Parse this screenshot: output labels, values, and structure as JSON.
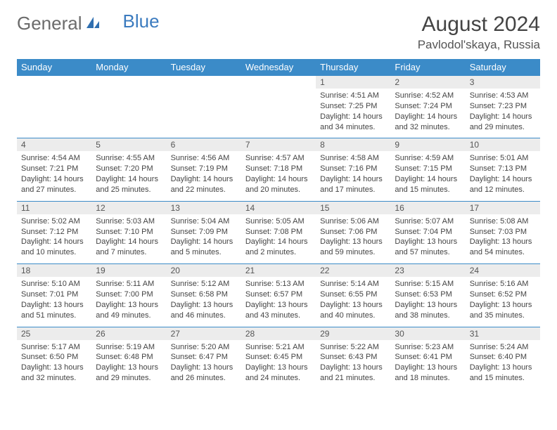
{
  "brand": {
    "part1": "General",
    "part2": "Blue"
  },
  "title": "August 2024",
  "location": "Pavlodol'skaya, Russia",
  "colors": {
    "header_bg": "#3b8bc8",
    "header_text": "#ffffff",
    "daynum_bg": "#ececec",
    "rule": "#3b8bc8",
    "text": "#444444",
    "brand_gray": "#6b6b6b",
    "brand_blue": "#3b7bbf",
    "page_bg": "#ffffff"
  },
  "day_headers": [
    "Sunday",
    "Monday",
    "Tuesday",
    "Wednesday",
    "Thursday",
    "Friday",
    "Saturday"
  ],
  "weeks": [
    {
      "nums": [
        "",
        "",
        "",
        "",
        "1",
        "2",
        "3"
      ],
      "cells": [
        {
          "empty": true
        },
        {
          "empty": true
        },
        {
          "empty": true
        },
        {
          "empty": true
        },
        {
          "sunrise": "Sunrise: 4:51 AM",
          "sunset": "Sunset: 7:25 PM",
          "day1": "Daylight: 14 hours",
          "day2": "and 34 minutes."
        },
        {
          "sunrise": "Sunrise: 4:52 AM",
          "sunset": "Sunset: 7:24 PM",
          "day1": "Daylight: 14 hours",
          "day2": "and 32 minutes."
        },
        {
          "sunrise": "Sunrise: 4:53 AM",
          "sunset": "Sunset: 7:23 PM",
          "day1": "Daylight: 14 hours",
          "day2": "and 29 minutes."
        }
      ]
    },
    {
      "nums": [
        "4",
        "5",
        "6",
        "7",
        "8",
        "9",
        "10"
      ],
      "cells": [
        {
          "sunrise": "Sunrise: 4:54 AM",
          "sunset": "Sunset: 7:21 PM",
          "day1": "Daylight: 14 hours",
          "day2": "and 27 minutes."
        },
        {
          "sunrise": "Sunrise: 4:55 AM",
          "sunset": "Sunset: 7:20 PM",
          "day1": "Daylight: 14 hours",
          "day2": "and 25 minutes."
        },
        {
          "sunrise": "Sunrise: 4:56 AM",
          "sunset": "Sunset: 7:19 PM",
          "day1": "Daylight: 14 hours",
          "day2": "and 22 minutes."
        },
        {
          "sunrise": "Sunrise: 4:57 AM",
          "sunset": "Sunset: 7:18 PM",
          "day1": "Daylight: 14 hours",
          "day2": "and 20 minutes."
        },
        {
          "sunrise": "Sunrise: 4:58 AM",
          "sunset": "Sunset: 7:16 PM",
          "day1": "Daylight: 14 hours",
          "day2": "and 17 minutes."
        },
        {
          "sunrise": "Sunrise: 4:59 AM",
          "sunset": "Sunset: 7:15 PM",
          "day1": "Daylight: 14 hours",
          "day2": "and 15 minutes."
        },
        {
          "sunrise": "Sunrise: 5:01 AM",
          "sunset": "Sunset: 7:13 PM",
          "day1": "Daylight: 14 hours",
          "day2": "and 12 minutes."
        }
      ]
    },
    {
      "nums": [
        "11",
        "12",
        "13",
        "14",
        "15",
        "16",
        "17"
      ],
      "cells": [
        {
          "sunrise": "Sunrise: 5:02 AM",
          "sunset": "Sunset: 7:12 PM",
          "day1": "Daylight: 14 hours",
          "day2": "and 10 minutes."
        },
        {
          "sunrise": "Sunrise: 5:03 AM",
          "sunset": "Sunset: 7:10 PM",
          "day1": "Daylight: 14 hours",
          "day2": "and 7 minutes."
        },
        {
          "sunrise": "Sunrise: 5:04 AM",
          "sunset": "Sunset: 7:09 PM",
          "day1": "Daylight: 14 hours",
          "day2": "and 5 minutes."
        },
        {
          "sunrise": "Sunrise: 5:05 AM",
          "sunset": "Sunset: 7:08 PM",
          "day1": "Daylight: 14 hours",
          "day2": "and 2 minutes."
        },
        {
          "sunrise": "Sunrise: 5:06 AM",
          "sunset": "Sunset: 7:06 PM",
          "day1": "Daylight: 13 hours",
          "day2": "and 59 minutes."
        },
        {
          "sunrise": "Sunrise: 5:07 AM",
          "sunset": "Sunset: 7:04 PM",
          "day1": "Daylight: 13 hours",
          "day2": "and 57 minutes."
        },
        {
          "sunrise": "Sunrise: 5:08 AM",
          "sunset": "Sunset: 7:03 PM",
          "day1": "Daylight: 13 hours",
          "day2": "and 54 minutes."
        }
      ]
    },
    {
      "nums": [
        "18",
        "19",
        "20",
        "21",
        "22",
        "23",
        "24"
      ],
      "cells": [
        {
          "sunrise": "Sunrise: 5:10 AM",
          "sunset": "Sunset: 7:01 PM",
          "day1": "Daylight: 13 hours",
          "day2": "and 51 minutes."
        },
        {
          "sunrise": "Sunrise: 5:11 AM",
          "sunset": "Sunset: 7:00 PM",
          "day1": "Daylight: 13 hours",
          "day2": "and 49 minutes."
        },
        {
          "sunrise": "Sunrise: 5:12 AM",
          "sunset": "Sunset: 6:58 PM",
          "day1": "Daylight: 13 hours",
          "day2": "and 46 minutes."
        },
        {
          "sunrise": "Sunrise: 5:13 AM",
          "sunset": "Sunset: 6:57 PM",
          "day1": "Daylight: 13 hours",
          "day2": "and 43 minutes."
        },
        {
          "sunrise": "Sunrise: 5:14 AM",
          "sunset": "Sunset: 6:55 PM",
          "day1": "Daylight: 13 hours",
          "day2": "and 40 minutes."
        },
        {
          "sunrise": "Sunrise: 5:15 AM",
          "sunset": "Sunset: 6:53 PM",
          "day1": "Daylight: 13 hours",
          "day2": "and 38 minutes."
        },
        {
          "sunrise": "Sunrise: 5:16 AM",
          "sunset": "Sunset: 6:52 PM",
          "day1": "Daylight: 13 hours",
          "day2": "and 35 minutes."
        }
      ]
    },
    {
      "nums": [
        "25",
        "26",
        "27",
        "28",
        "29",
        "30",
        "31"
      ],
      "cells": [
        {
          "sunrise": "Sunrise: 5:17 AM",
          "sunset": "Sunset: 6:50 PM",
          "day1": "Daylight: 13 hours",
          "day2": "and 32 minutes."
        },
        {
          "sunrise": "Sunrise: 5:19 AM",
          "sunset": "Sunset: 6:48 PM",
          "day1": "Daylight: 13 hours",
          "day2": "and 29 minutes."
        },
        {
          "sunrise": "Sunrise: 5:20 AM",
          "sunset": "Sunset: 6:47 PM",
          "day1": "Daylight: 13 hours",
          "day2": "and 26 minutes."
        },
        {
          "sunrise": "Sunrise: 5:21 AM",
          "sunset": "Sunset: 6:45 PM",
          "day1": "Daylight: 13 hours",
          "day2": "and 24 minutes."
        },
        {
          "sunrise": "Sunrise: 5:22 AM",
          "sunset": "Sunset: 6:43 PM",
          "day1": "Daylight: 13 hours",
          "day2": "and 21 minutes."
        },
        {
          "sunrise": "Sunrise: 5:23 AM",
          "sunset": "Sunset: 6:41 PM",
          "day1": "Daylight: 13 hours",
          "day2": "and 18 minutes."
        },
        {
          "sunrise": "Sunrise: 5:24 AM",
          "sunset": "Sunset: 6:40 PM",
          "day1": "Daylight: 13 hours",
          "day2": "and 15 minutes."
        }
      ]
    }
  ]
}
